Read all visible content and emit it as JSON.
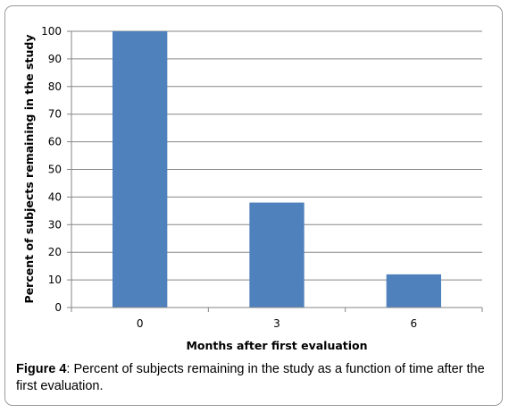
{
  "chart_data": {
    "type": "bar",
    "categories": [
      "0",
      "3",
      "6"
    ],
    "values": [
      100,
      38,
      12
    ],
    "xlabel": "Months after first evaluation",
    "ylabel": "Percent of subjects remaining in the study",
    "ylim": [
      0,
      100
    ],
    "yticks": [
      "0",
      "10",
      "20",
      "30",
      "40",
      "50",
      "60",
      "70",
      "80",
      "90",
      "100"
    ],
    "grid": true,
    "bar_color": "#4f81bd",
    "legend": "none"
  },
  "caption": {
    "label": "Figure 4",
    "text": ": Percent of subjects remaining in the study as a function of time after the first evaluation."
  }
}
